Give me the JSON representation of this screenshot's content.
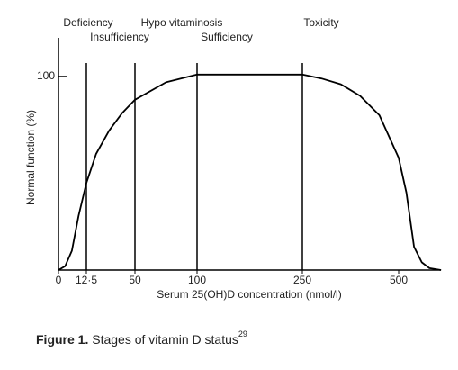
{
  "chart_data": {
    "type": "line",
    "x_label": "Serum 25(OH)D concentration (nmol/l)",
    "y_label": "Normal function (%)",
    "stage_labels": [
      "Deficiency",
      "Insufficiency",
      "Hypo vitaminosis",
      "Sufficiency",
      "Toxicity"
    ],
    "stage_boundaries": [
      12.5,
      50,
      100,
      250
    ],
    "x": [
      0,
      3,
      6,
      9,
      12.5,
      20,
      30,
      40,
      50,
      75,
      100,
      250,
      300,
      350,
      400,
      450,
      500,
      520,
      540,
      560,
      580,
      610
    ],
    "series": [
      {
        "color": "#000000",
        "values": [
          0,
          2,
          10,
          28,
          45,
          60,
          72,
          81,
          88,
          97,
          101,
          101,
          99,
          96,
          90,
          80,
          58,
          40,
          12,
          4,
          1,
          0
        ]
      }
    ],
    "xlim": [
      0,
      610
    ],
    "xticks": [
      0,
      {
        "value": 12.5,
        "label": "12·5"
      },
      50,
      100,
      250,
      500
    ],
    "ylim": [
      0,
      120
    ],
    "yticks": [
      100
    ],
    "caption": {
      "label": "Figure 1.",
      "text": "Stages of vitamin D status",
      "ref": "29"
    }
  }
}
